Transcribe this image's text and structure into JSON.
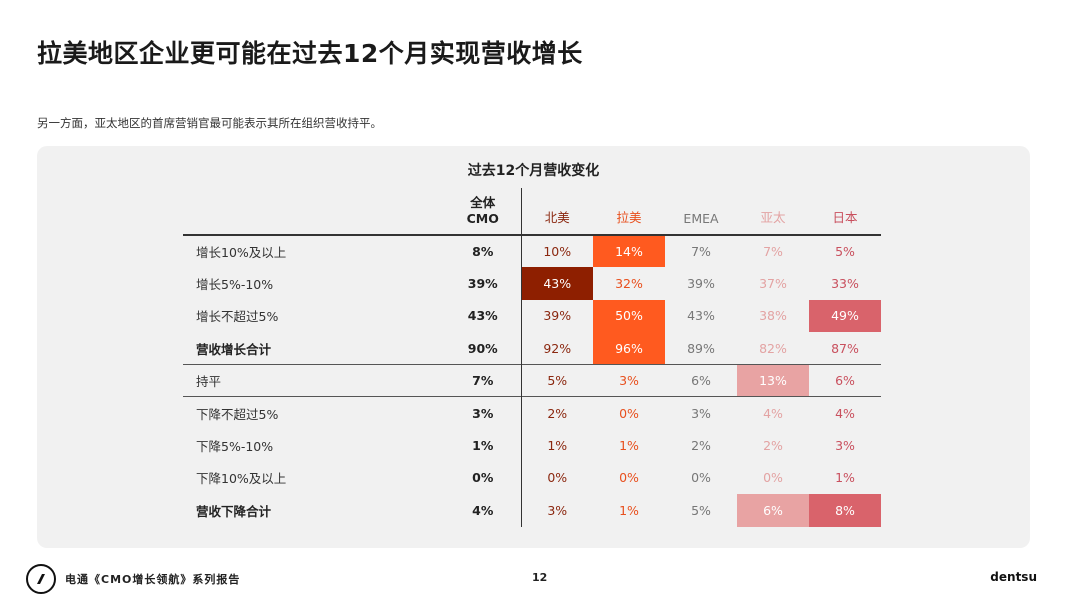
{
  "title": "拉美地区企业更可能在过去12个月实现营收增长",
  "subtitle": "另一方面，亚太地区的首席营销官最可能表示其所在组织营收持平。",
  "table": {
    "title": "过去12个月营收变化",
    "header_cmo_line1": "全体",
    "header_cmo_line2": "CMO",
    "columns": [
      "北美",
      "拉美",
      "EMEA",
      "亚太",
      "日本"
    ],
    "column_colors": [
      "#8b2810",
      "#e8501e",
      "#777777",
      "#e3a3a3",
      "#c9505e"
    ],
    "rows": [
      {
        "label": "增长10%及以上",
        "cmo": "8%",
        "values": [
          "10%",
          "14%",
          "7%",
          "7%",
          "5%"
        ],
        "highlight": [
          null,
          "#ff5a1f",
          null,
          null,
          null
        ]
      },
      {
        "label": "增长5%-10%",
        "cmo": "39%",
        "values": [
          "43%",
          "32%",
          "39%",
          "37%",
          "33%"
        ],
        "highlight": [
          "#8e1f00",
          null,
          null,
          null,
          null
        ]
      },
      {
        "label": "增长不超过5%",
        "cmo": "43%",
        "values": [
          "39%",
          "50%",
          "43%",
          "38%",
          "49%"
        ],
        "highlight": [
          null,
          "#ff5a1f",
          null,
          null,
          "#d9636b"
        ]
      },
      {
        "label": "营收增长合计",
        "cmo": "90%",
        "values": [
          "92%",
          "96%",
          "89%",
          "82%",
          "87%"
        ],
        "highlight": [
          null,
          "#ff5a1f",
          null,
          null,
          null
        ]
      },
      {
        "label": "持平",
        "cmo": "7%",
        "values": [
          "5%",
          "3%",
          "6%",
          "13%",
          "6%"
        ],
        "highlight": [
          null,
          null,
          null,
          "#e8a3a3",
          null
        ]
      },
      {
        "label": "下降不超过5%",
        "cmo": "3%",
        "values": [
          "2%",
          "0%",
          "3%",
          "4%",
          "4%"
        ],
        "highlight": [
          null,
          null,
          null,
          null,
          null
        ]
      },
      {
        "label": "下降5%-10%",
        "cmo": "1%",
        "values": [
          "1%",
          "1%",
          "2%",
          "2%",
          "3%"
        ],
        "highlight": [
          null,
          null,
          null,
          null,
          null
        ]
      },
      {
        "label": "下降10%及以上",
        "cmo": "0%",
        "values": [
          "0%",
          "0%",
          "0%",
          "0%",
          "1%"
        ],
        "highlight": [
          null,
          null,
          null,
          null,
          null
        ]
      },
      {
        "label": "营收下降合计",
        "cmo": "4%",
        "values": [
          "3%",
          "1%",
          "5%",
          "6%",
          "8%"
        ],
        "highlight": [
          null,
          null,
          null,
          "#e8a3a3",
          "#d9636b"
        ]
      }
    ]
  },
  "footer": {
    "report": "电通《CMO增长领航》系列报告",
    "page": "12",
    "brand": "dentsu"
  }
}
